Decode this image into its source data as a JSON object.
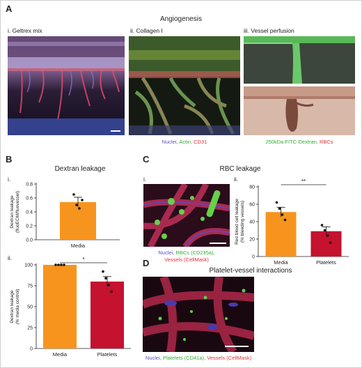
{
  "colors": {
    "media": "#f7941d",
    "platelets": "#c4122f",
    "nuclei": "#5b4fc7",
    "actin": "#2fae2f",
    "cd31": "#e0303a",
    "fitc": "#2fae2f",
    "rbc": "#e0303a",
    "cellmask": "#e0303a"
  },
  "panelA": {
    "letter": "A",
    "title": "Angiogenesis",
    "sub_i": "i. Geltrex mix",
    "sub_ii": "ii. Collagen I",
    "sub_iii": "iii. Vessel perfusion",
    "legend_ii": {
      "nuclei": "Nuclei, ",
      "actin": "Actin, ",
      "cd31": "CD31"
    },
    "legend_iii": {
      "fitc": "250kDa FITC-Dextran, ",
      "rbc": "RBCs"
    }
  },
  "panelB": {
    "letter": "B",
    "title": "Dextran leakage",
    "sub_i": "i.",
    "sub_ii": "ii."
  },
  "panelC": {
    "letter": "C",
    "title": "RBC leakage",
    "sub_i": "i.",
    "sub_ii": "ii.",
    "legend": {
      "nuclei": "Nuclei, ",
      "rbcs": "RBCs (CD235a),",
      "vessels": "Vessels (CellMask)"
    }
  },
  "panelD": {
    "letter": "D",
    "title": "Platelet-vessel interactions",
    "legend": {
      "nuclei": "Nuclei, ",
      "platelets": "Platelets (CD41a), ",
      "vessels": "Vessels (CellMask)"
    }
  },
  "chart_data": [
    {
      "id": "B-i",
      "type": "bar",
      "categories": [
        "Media"
      ],
      "values": [
        0.54
      ],
      "error": [
        0.07
      ],
      "points": [
        [
          0.65,
          0.5,
          0.45,
          0.57
        ]
      ],
      "ylabel": "Dextran leakage (fluoECM/fluovessel)",
      "ylim": [
        0,
        0.8
      ],
      "yticks": [
        "0.0",
        "0.2",
        "0.4",
        "0.6",
        "0.8"
      ],
      "significance": ""
    },
    {
      "id": "B-ii",
      "type": "bar",
      "categories": [
        "Media",
        "Platelets"
      ],
      "values": [
        100,
        80
      ],
      "error": [
        0,
        6
      ],
      "points": [
        [
          100,
          100,
          100,
          100
        ],
        [
          92,
          84,
          76,
          68
        ]
      ],
      "ylabel": "Dextran leakage (% media control)",
      "ylim": [
        0,
        100
      ],
      "yticks": [
        "0",
        "25",
        "50",
        "75",
        "100"
      ],
      "significance": "*"
    },
    {
      "id": "C-ii",
      "type": "bar",
      "categories": [
        "Media",
        "Platelets"
      ],
      "values": [
        51,
        29
      ],
      "error": [
        5.5,
        5
      ],
      "points": [
        [
          62,
          55,
          48,
          42
        ],
        [
          36,
          30,
          24,
          16
        ]
      ],
      "ylabel": "Red blood cell leakage (% bleeding vessels)",
      "ylim": [
        0,
        80
      ],
      "yticks": [
        "0",
        "20",
        "40",
        "60",
        "80"
      ],
      "significance": "**"
    }
  ]
}
